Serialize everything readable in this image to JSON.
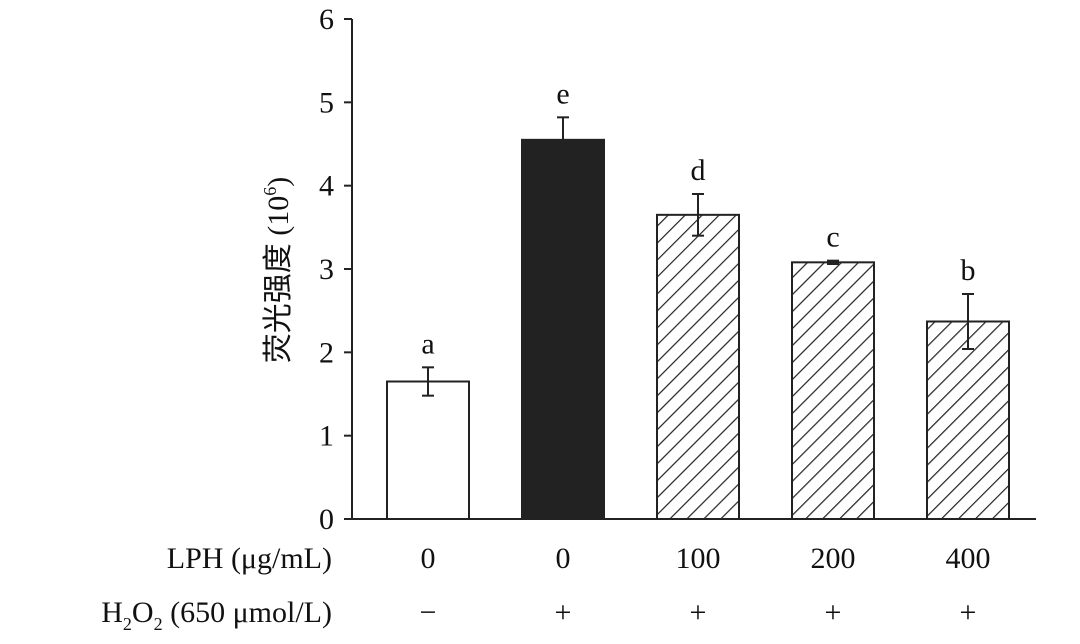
{
  "chart_data": {
    "type": "bar",
    "ylabel": "荧光强度 (10",
    "ylabel_sup": "6",
    "ylabel_close": ")",
    "ylim": [
      0,
      6
    ],
    "yticks": [
      "0",
      "1",
      "2",
      "3",
      "4",
      "5",
      "6"
    ],
    "grid": false,
    "categories": [
      {
        "lph": "0",
        "h2o2": "−"
      },
      {
        "lph": "0",
        "h2o2": "+"
      },
      {
        "lph": "100",
        "h2o2": "+"
      },
      {
        "lph": "200",
        "h2o2": "+"
      },
      {
        "lph": "400",
        "h2o2": "+"
      }
    ],
    "values": [
      1.65,
      4.55,
      3.65,
      3.08,
      2.37
    ],
    "errors": [
      0.17,
      0.27,
      0.25,
      0.02,
      0.33
    ],
    "significance": [
      "a",
      "e",
      "d",
      "c",
      "b"
    ],
    "fills": [
      "white",
      "black",
      "hatched",
      "hatched",
      "hatched"
    ],
    "row_labels": {
      "lph": "LPH (μg/mL)",
      "h2o2_prefix": "H",
      "h2o2_sub1": "2",
      "h2o2_mid": "O",
      "h2o2_sub2": "2",
      "h2o2_suffix": " (650 μmol/L)"
    },
    "colors": {
      "solid": "#222222",
      "outline": "#222222"
    }
  }
}
